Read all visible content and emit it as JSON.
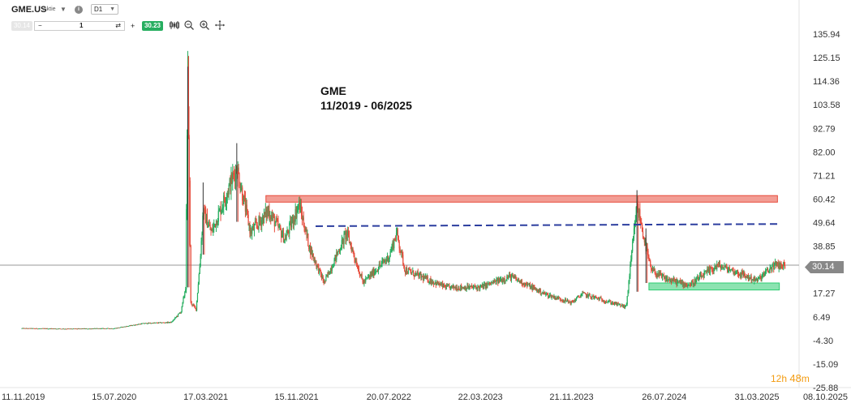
{
  "toolbar": {
    "symbol": "GME.US",
    "symbol_type": "Aktie",
    "timeframe": "D1",
    "sell_price": "30.14",
    "quantity": "1",
    "buy_price": "30.23",
    "minus_label": "−",
    "plus_label": "+"
  },
  "annotation": {
    "line1": "GME",
    "line2": "11/2019 - 06/2025"
  },
  "current_price_label": "30.14",
  "countdown": {
    "hours": "12",
    "h": "h",
    "minutes": "48",
    "m": "m"
  },
  "colors": {
    "up": "#27ae60",
    "down": "#e74c3c",
    "resistance_zone": "#e74c3c",
    "support_zone": "#2ecc71",
    "dashed_line": "#2c3e9f",
    "price_tag": "#888888"
  },
  "icons": [
    "info-icon",
    "swap-icon",
    "candles-icon",
    "zoom-out-icon",
    "zoom-in-icon",
    "crosshair-icon"
  ],
  "chart_data": {
    "type": "candlestick",
    "title": "GME",
    "subtitle": "11/2019 - 06/2025",
    "y_ticks": [
      135.94,
      125.15,
      114.36,
      103.58,
      92.79,
      82.0,
      71.21,
      60.42,
      49.64,
      38.85,
      28.06,
      17.27,
      6.49,
      -4.3,
      -15.09,
      -25.88
    ],
    "y_tick_labels": [
      "135.94",
      "125.15",
      "114.36",
      "103.58",
      "92.79",
      "82.00",
      "71.21",
      "60.42",
      "49.64",
      "38.85",
      "28.06",
      "17.27",
      "6.49",
      "-4.30",
      "-15.09",
      "-25.88"
    ],
    "ylim": [
      -25.88,
      135.94
    ],
    "x_tick_labels": [
      "11.11.2019",
      "15.07.2020",
      "17.03.2021",
      "15.11.2021",
      "20.07.2022",
      "22.03.2023",
      "21.11.2023",
      "26.07.2024",
      "31.03.2025",
      "08.10.2025"
    ],
    "x_tick_dates": [
      "2019-11-11",
      "2020-07-15",
      "2021-03-17",
      "2021-11-15",
      "2022-07-20",
      "2023-03-22",
      "2023-11-21",
      "2024-07-26",
      "2025-03-31",
      "2025-10-08"
    ],
    "current_price": 30.14,
    "price_path": [
      [
        "2019-11-11",
        1.2
      ],
      [
        "2020-04-01",
        1.0
      ],
      [
        "2020-07-15",
        1.2
      ],
      [
        "2020-10-01",
        3.5
      ],
      [
        "2020-12-15",
        4.0
      ],
      [
        "2021-01-10",
        9.0
      ],
      [
        "2021-01-22",
        20.0
      ],
      [
        "2021-01-28",
        120.0
      ],
      [
        "2021-02-05",
        13.0
      ],
      [
        "2021-02-19",
        10.0
      ],
      [
        "2021-03-01",
        30.0
      ],
      [
        "2021-03-10",
        55.0
      ],
      [
        "2021-04-01",
        45.0
      ],
      [
        "2021-06-08",
        75.0
      ],
      [
        "2021-07-15",
        45.0
      ],
      [
        "2021-09-01",
        55.0
      ],
      [
        "2021-10-15",
        42.0
      ],
      [
        "2021-11-22",
        58.0
      ],
      [
        "2021-12-20",
        38.0
      ],
      [
        "2022-01-28",
        22.0
      ],
      [
        "2022-03-29",
        45.0
      ],
      [
        "2022-05-12",
        22.0
      ],
      [
        "2022-07-20",
        34.0
      ],
      [
        "2022-08-10",
        45.0
      ],
      [
        "2022-09-01",
        28.0
      ],
      [
        "2022-12-20",
        20.0
      ],
      [
        "2023-03-22",
        20.0
      ],
      [
        "2023-06-10",
        25.0
      ],
      [
        "2023-09-10",
        17.0
      ],
      [
        "2023-11-21",
        13.0
      ],
      [
        "2023-12-20",
        17.0
      ],
      [
        "2024-04-15",
        11.0
      ],
      [
        "2024-05-14",
        58.0
      ],
      [
        "2024-06-20",
        28.0
      ],
      [
        "2024-07-26",
        24.0
      ],
      [
        "2024-10-01",
        21.0
      ],
      [
        "2024-12-15",
        30.0
      ],
      [
        "2025-01-20",
        28.0
      ],
      [
        "2025-03-31",
        23.0
      ],
      [
        "2025-05-15",
        30.0
      ],
      [
        "2025-06-15",
        30.14
      ]
    ],
    "spikes": [
      {
        "date": "2021-01-28",
        "high": 121.0,
        "low": 20.0
      },
      {
        "date": "2021-06-08",
        "high": 86.0,
        "low": 50.0
      },
      {
        "date": "2021-03-10",
        "high": 68.0,
        "low": 35.0
      },
      {
        "date": "2024-05-14",
        "high": 64.5,
        "low": 18.0
      },
      {
        "date": "2024-06-07",
        "high": 47.0,
        "low": 22.0
      }
    ],
    "zones": [
      {
        "name": "resistance",
        "x_start": "2021-08-25",
        "x_end": "2025-05-25",
        "y_low": 59.0,
        "y_high": 62.0,
        "color": "#e74c3c"
      },
      {
        "name": "support",
        "x_start": "2024-06-15",
        "x_end": "2025-05-30",
        "y_low": 18.8,
        "y_high": 22.0,
        "color": "#2ecc71"
      }
    ],
    "dashed_line": {
      "x_start": "2022-01-05",
      "y_start": 48.0,
      "x_end": "2025-05-30",
      "y_end": 49.0,
      "color": "#2c3e9f"
    },
    "grid": false,
    "xlabel": "",
    "ylabel": ""
  }
}
